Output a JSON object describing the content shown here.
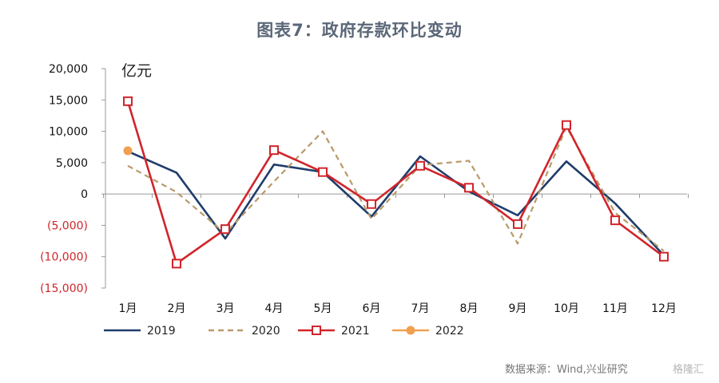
{
  "title": "图表7：政府存款环比变动",
  "source": "数据来源：Wind,兴业研究",
  "watermark": "格隆汇",
  "chart_data": {
    "type": "line",
    "title": "图表7：政府存款环比变动",
    "unit_label": "亿元",
    "categories": [
      "1月",
      "2月",
      "3月",
      "4月",
      "5月",
      "6月",
      "7月",
      "8月",
      "9月",
      "10月",
      "11月",
      "12月"
    ],
    "ylim": [
      -15000,
      20000
    ],
    "y_ticks": [
      20000,
      15000,
      10000,
      5000,
      0,
      -5000,
      -10000,
      -15000
    ],
    "y_tick_labels": [
      "20,000",
      "15,000",
      "10,000",
      "5,000",
      "0",
      "(5,000)",
      "(10,000)",
      "(15,000)"
    ],
    "grid": false,
    "legend_position": "bottom",
    "series": [
      {
        "name": "2019",
        "color": "#1f3d6b",
        "style": "solid",
        "marker": "none",
        "values": [
          6800,
          3400,
          -7100,
          4700,
          3500,
          -3600,
          6000,
          400,
          -3400,
          5200,
          -1500,
          -9800
        ]
      },
      {
        "name": "2020",
        "color": "#b99a6a",
        "style": "dashed",
        "marker": "none",
        "values": [
          4500,
          300,
          -6300,
          2000,
          10000,
          -4000,
          4600,
          5300,
          -7900,
          10700,
          -3000,
          -9100
        ]
      },
      {
        "name": "2021",
        "color": "#d0252b",
        "style": "solid",
        "marker": "square",
        "values": [
          14800,
          -11100,
          -5600,
          7000,
          3500,
          -1600,
          4500,
          1000,
          -4800,
          11000,
          -4200,
          -10000
        ]
      },
      {
        "name": "2022",
        "color": "#f0a050",
        "style": "solid",
        "marker": "circle",
        "values": [
          6900,
          null,
          null,
          null,
          null,
          null,
          null,
          null,
          null,
          null,
          null,
          null
        ]
      }
    ]
  }
}
